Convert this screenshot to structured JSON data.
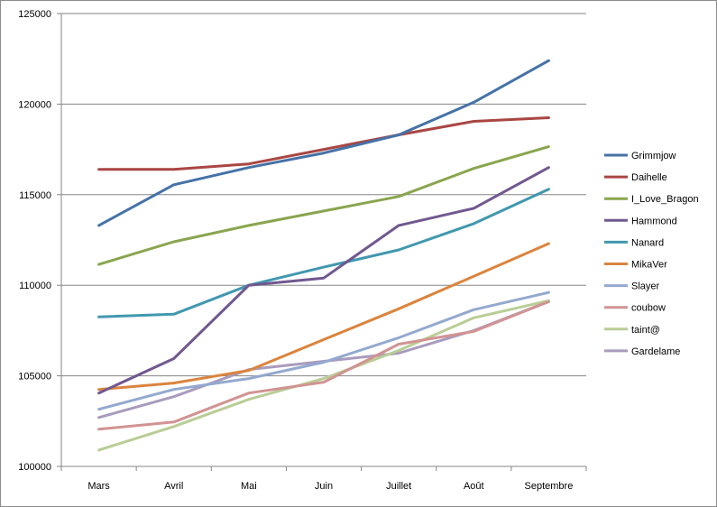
{
  "chart_data": {
    "type": "line",
    "categories": [
      "Mars",
      "Avril",
      "Mai",
      "Juin",
      "Juillet",
      "Août",
      "Septembre"
    ],
    "ylim": [
      100000,
      125000
    ],
    "yticks": [
      "100000",
      "105000",
      "110000",
      "115000",
      "120000",
      "125000"
    ],
    "ytick_values": [
      100000,
      105000,
      110000,
      115000,
      120000,
      125000
    ],
    "grid": "horizontal",
    "legend_position": "right",
    "series": [
      {
        "name": "Grimmjow",
        "color": "#4572A7",
        "values": [
          113300,
          115550,
          116500,
          117300,
          118300,
          120100,
          122400
        ]
      },
      {
        "name": "Daihelle",
        "color": "#AA4643",
        "values": [
          116400,
          116400,
          116700,
          117500,
          118300,
          119050,
          119250
        ]
      },
      {
        "name": "I_Love_Bragon",
        "color": "#89A54E",
        "values": [
          111150,
          112400,
          113300,
          114100,
          114900,
          116450,
          117650
        ]
      },
      {
        "name": "Hammond",
        "color": "#71588F",
        "values": [
          104050,
          105950,
          110000,
          110400,
          113300,
          114250,
          116500
        ]
      },
      {
        "name": "Nanard",
        "color": "#4198AF",
        "values": [
          108250,
          108400,
          110000,
          111000,
          111950,
          113400,
          115300
        ]
      },
      {
        "name": "MikaVer",
        "color": "#DB843D",
        "values": [
          104250,
          104600,
          105300,
          107000,
          108700,
          110500,
          112300
        ]
      },
      {
        "name": "Slayer",
        "color": "#93A9CF",
        "values": [
          103150,
          104250,
          104850,
          105750,
          107100,
          108650,
          109600
        ]
      },
      {
        "name": "coubow",
        "color": "#D19392",
        "values": [
          102050,
          102450,
          104050,
          104650,
          106750,
          107450,
          109100
        ]
      },
      {
        "name": "taint@",
        "color": "#B9CD96",
        "values": [
          100900,
          102200,
          103700,
          104850,
          106400,
          108200,
          109150
        ]
      },
      {
        "name": "Gardelame",
        "color": "#A99BBD",
        "values": [
          102700,
          103850,
          105350,
          105800,
          106250,
          107500,
          109100
        ]
      }
    ]
  }
}
